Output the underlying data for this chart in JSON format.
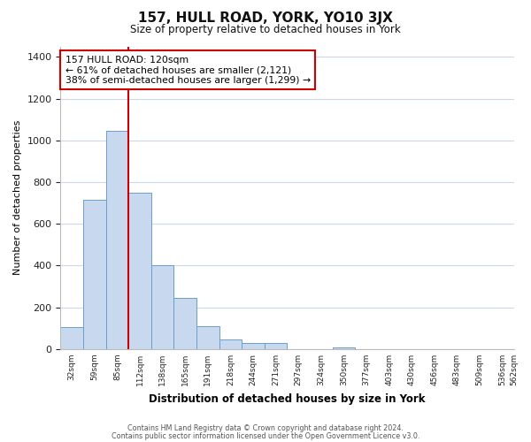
{
  "title": "157, HULL ROAD, YORK, YO10 3JX",
  "subtitle": "Size of property relative to detached houses in York",
  "xlabel": "Distribution of detached houses by size in York",
  "ylabel": "Number of detached properties",
  "bar_values": [
    105,
    715,
    1045,
    750,
    400,
    245,
    110,
    48,
    28,
    28,
    0,
    0,
    10,
    0,
    0,
    0,
    0,
    0,
    0,
    0
  ],
  "bar_labels": [
    "32sqm",
    "59sqm",
    "85sqm",
    "112sqm",
    "138sqm",
    "165sqm",
    "191sqm",
    "218sqm",
    "244sqm",
    "271sqm",
    "297sqm",
    "324sqm",
    "350sqm",
    "377sqm",
    "403sqm",
    "430sqm",
    "456sqm",
    "483sqm",
    "509sqm",
    "536sqm",
    "562sqm"
  ],
  "bar_color": "#c8d8ee",
  "bar_edge_color": "#6b9ec8",
  "vline_x": 3.0,
  "vline_color": "#cc0000",
  "annotation_title": "157 HULL ROAD: 120sqm",
  "annotation_line1": "← 61% of detached houses are smaller (2,121)",
  "annotation_line2": "38% of semi-detached houses are larger (1,299) →",
  "annotation_box_color": "#ffffff",
  "annotation_box_edge": "#cc0000",
  "ylim": [
    0,
    1450
  ],
  "yticks": [
    0,
    200,
    400,
    600,
    800,
    1000,
    1200,
    1400
  ],
  "footnote1": "Contains HM Land Registry data © Crown copyright and database right 2024.",
  "footnote2": "Contains public sector information licensed under the Open Government Licence v3.0.",
  "bg_color": "#ffffff",
  "grid_color": "#cdd9e8",
  "title_fontsize": 11,
  "subtitle_fontsize": 8.5
}
